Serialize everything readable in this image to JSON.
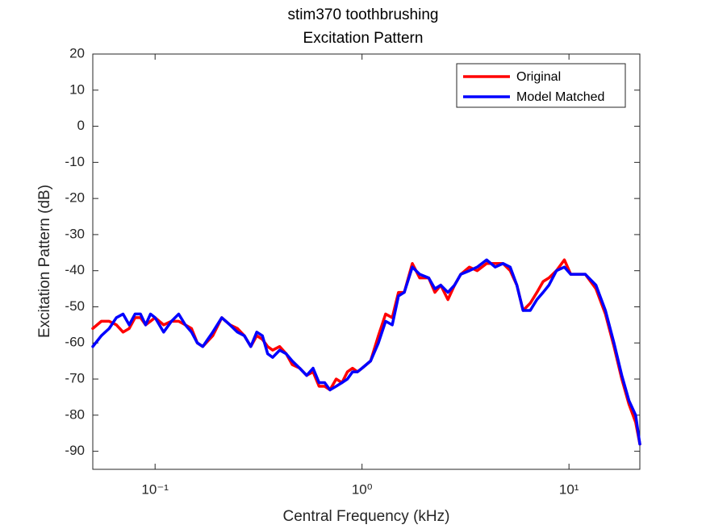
{
  "chart_data": {
    "type": "line",
    "title": "stim370 toothbrushing",
    "subtitle": "Excitation Pattern",
    "x_label": "Central Frequency (kHz)",
    "y_label": "Excitation Pattern (dB)",
    "x_scale": "log",
    "xlim": [
      0.05,
      22
    ],
    "ylim": [
      -95,
      20
    ],
    "xticks": [
      {
        "value": 0.1,
        "label": "10⁻¹"
      },
      {
        "value": 1,
        "label": "10⁰"
      },
      {
        "value": 10,
        "label": "10¹"
      }
    ],
    "yticks": [
      20,
      10,
      0,
      -10,
      -20,
      -30,
      -40,
      -50,
      -60,
      -70,
      -80,
      -90
    ],
    "grid": false,
    "legend_position": "top-right",
    "x": [
      0.05,
      0.055,
      0.06,
      0.065,
      0.07,
      0.075,
      0.08,
      0.085,
      0.09,
      0.095,
      0.1,
      0.11,
      0.12,
      0.13,
      0.14,
      0.15,
      0.16,
      0.17,
      0.19,
      0.21,
      0.23,
      0.25,
      0.27,
      0.29,
      0.31,
      0.33,
      0.35,
      0.37,
      0.4,
      0.43,
      0.46,
      0.5,
      0.54,
      0.58,
      0.62,
      0.66,
      0.7,
      0.75,
      0.8,
      0.85,
      0.9,
      0.95,
      1.0,
      1.1,
      1.2,
      1.3,
      1.4,
      1.5,
      1.6,
      1.75,
      1.9,
      2.1,
      2.25,
      2.4,
      2.6,
      2.8,
      3.0,
      3.3,
      3.6,
      4.0,
      4.4,
      4.8,
      5.2,
      5.6,
      6.0,
      6.5,
      7.0,
      7.5,
      8.0,
      8.7,
      9.5,
      10.2,
      11.0,
      12.0,
      13.5,
      15.0,
      16.5,
      18.0,
      19.5,
      21.0,
      22.0
    ],
    "series": [
      {
        "name": "Original",
        "color": "#ff0000",
        "values": [
          -56,
          -54,
          -54,
          -55,
          -57,
          -56,
          -53,
          -53,
          -55,
          -54,
          -53,
          -55,
          -54,
          -54,
          -55,
          -56,
          -60,
          -61,
          -58,
          -53,
          -55,
          -56,
          -58,
          -61,
          -58,
          -59,
          -61,
          -62,
          -61,
          -63,
          -66,
          -67,
          -69,
          -68,
          -72,
          -72,
          -73,
          -70,
          -71,
          -68,
          -67,
          -68,
          -67,
          -65,
          -58,
          -52,
          -53,
          -46,
          -46,
          -38,
          -42,
          -42,
          -46,
          -44,
          -48,
          -44,
          -41,
          -39,
          -40,
          -38,
          -38,
          -38,
          -40,
          -44,
          -51,
          -49,
          -46,
          -43,
          -42,
          -40,
          -37,
          -41,
          -41,
          -41,
          -45,
          -52,
          -61,
          -70,
          -77,
          -82,
          -88
        ]
      },
      {
        "name": "Model Matched",
        "color": "#0000ff",
        "values": [
          -61,
          -58,
          -56,
          -53,
          -52,
          -55,
          -52,
          -52,
          -55,
          -52,
          -53,
          -57,
          -54,
          -52,
          -55,
          -57,
          -60,
          -61,
          -57,
          -53,
          -55,
          -57,
          -58,
          -61,
          -57,
          -58,
          -63,
          -64,
          -62,
          -63,
          -65,
          -67,
          -69,
          -67,
          -71,
          -71,
          -73,
          -72,
          -71,
          -70,
          -68,
          -68,
          -67,
          -65,
          -60,
          -54,
          -55,
          -47,
          -46,
          -39,
          -41,
          -42,
          -45,
          -44,
          -46,
          -44,
          -41,
          -40,
          -39,
          -37,
          -39,
          -38,
          -39,
          -44,
          -51,
          -51,
          -48,
          -46,
          -44,
          -40,
          -39,
          -41,
          -41,
          -41,
          -44,
          -51,
          -60,
          -69,
          -76,
          -80,
          -88
        ]
      }
    ]
  }
}
